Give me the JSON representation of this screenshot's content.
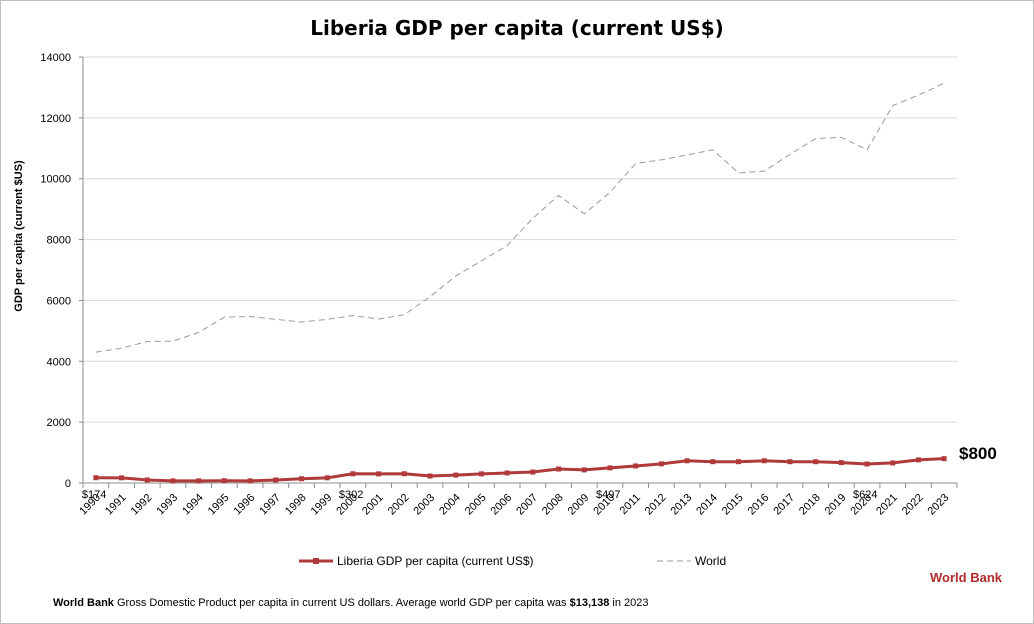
{
  "chart_data": {
    "type": "line",
    "title": "Liberia GDP per capita (current US$)",
    "ylabel": "GDP per capita (current $US)",
    "xlabel": "",
    "ylim": [
      0,
      14000
    ],
    "yticks": [
      0,
      2000,
      4000,
      6000,
      8000,
      10000,
      12000,
      14000
    ],
    "grid": true,
    "legend_position": "bottom",
    "x": [
      "1990",
      "1991",
      "1992",
      "1993",
      "1994",
      "1995",
      "1996",
      "1997",
      "1998",
      "1999",
      "2000",
      "2001",
      "2002",
      "2003",
      "2004",
      "2005",
      "2006",
      "2007",
      "2008",
      "2009",
      "2010",
      "2011",
      "2012",
      "2013",
      "2014",
      "2015",
      "2016",
      "2017",
      "2018",
      "2019",
      "2020",
      "2021",
      "2022",
      "2023"
    ],
    "series": [
      {
        "name": "Liberia GDP per capita (current US$)",
        "color": "#b03a3a",
        "style": "solid-markers",
        "values": [
          174,
          170,
          100,
          70,
          70,
          75,
          70,
          100,
          140,
          170,
          302,
          300,
          305,
          230,
          260,
          300,
          330,
          360,
          460,
          430,
          497,
          560,
          630,
          730,
          700,
          700,
          730,
          700,
          700,
          670,
          624,
          660,
          760,
          800
        ]
      },
      {
        "name": "World",
        "color": "#9a9a9a",
        "style": "dashed",
        "values": [
          4300,
          4430,
          4650,
          4660,
          4950,
          5450,
          5470,
          5380,
          5290,
          5380,
          5500,
          5390,
          5530,
          6120,
          6800,
          7300,
          7800,
          8700,
          9450,
          8850,
          9550,
          10500,
          10620,
          10780,
          10950,
          10190,
          10250,
          10800,
          11320,
          11360,
          10950,
          12400,
          12750,
          13138
        ]
      }
    ],
    "data_labels": [
      {
        "year": "1990",
        "text": "$174"
      },
      {
        "year": "2000",
        "text": "$302"
      },
      {
        "year": "2010",
        "text": "$497"
      },
      {
        "year": "2020",
        "text": "$624"
      }
    ],
    "end_label": "$800"
  },
  "brand": "World Bank",
  "footnote": {
    "source": "World Bank",
    "text_pre": " Gross Domestic Product per capita in current US dollars.  Average world GDP per capita was ",
    "value": "$13,138",
    "text_post": " in 2023"
  }
}
